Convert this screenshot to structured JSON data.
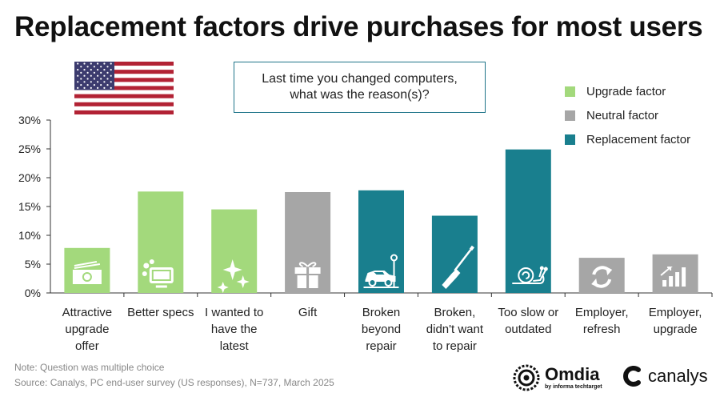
{
  "chart_data": {
    "type": "bar",
    "title": "Replacement factors drive purchases for most users",
    "question": [
      "Last time you changed computers,",
      "what was the reason(s)?"
    ],
    "categories": [
      [
        "Attractive",
        "upgrade",
        "offer"
      ],
      [
        "Better specs"
      ],
      [
        "I wanted to",
        "have the",
        "latest"
      ],
      [
        "Gift"
      ],
      [
        "Broken",
        "beyond",
        "repair"
      ],
      [
        "Broken,",
        "didn't want",
        "to repair"
      ],
      [
        "Too slow or",
        "outdated"
      ],
      [
        "Employer,",
        "refresh"
      ],
      [
        "Employer,",
        "upgrade"
      ]
    ],
    "values": [
      7.8,
      17.6,
      14.5,
      17.5,
      17.8,
      13.4,
      24.9,
      6.1,
      6.7
    ],
    "factor": [
      "upgrade",
      "upgrade",
      "upgrade",
      "neutral",
      "replacement",
      "replacement",
      "replacement",
      "neutral",
      "neutral"
    ],
    "icons": [
      "money-icon",
      "screen-icon",
      "sparkle-icon",
      "gift-icon",
      "car-icon",
      "screwdriver-icon",
      "snail-icon",
      "refresh-icon",
      "growth-chart-icon"
    ],
    "ylim": [
      0,
      30
    ],
    "yticks": [
      0,
      5,
      10,
      15,
      20,
      25,
      30
    ],
    "yticklabels": [
      "0%",
      "5%",
      "10%",
      "15%",
      "20%",
      "25%",
      "30%"
    ],
    "xlabel": "",
    "ylabel": "",
    "legend": [
      {
        "key": "upgrade",
        "label": "Upgrade factor",
        "color": "#a3d97c"
      },
      {
        "key": "neutral",
        "label": "Neutral factor",
        "color": "#a6a6a6"
      },
      {
        "key": "replacement",
        "label": "Replacement factor",
        "color": "#197f8e"
      }
    ],
    "legend_position": "top-right"
  },
  "note": "Note: Question was multiple choice",
  "source": "Source: Canalys, PC end-user survey (US responses), N=737, March 2025",
  "logos": {
    "omdia_name": "Omdia",
    "omdia_sub": "by informa techtarget",
    "canalys_name": "canalys"
  }
}
